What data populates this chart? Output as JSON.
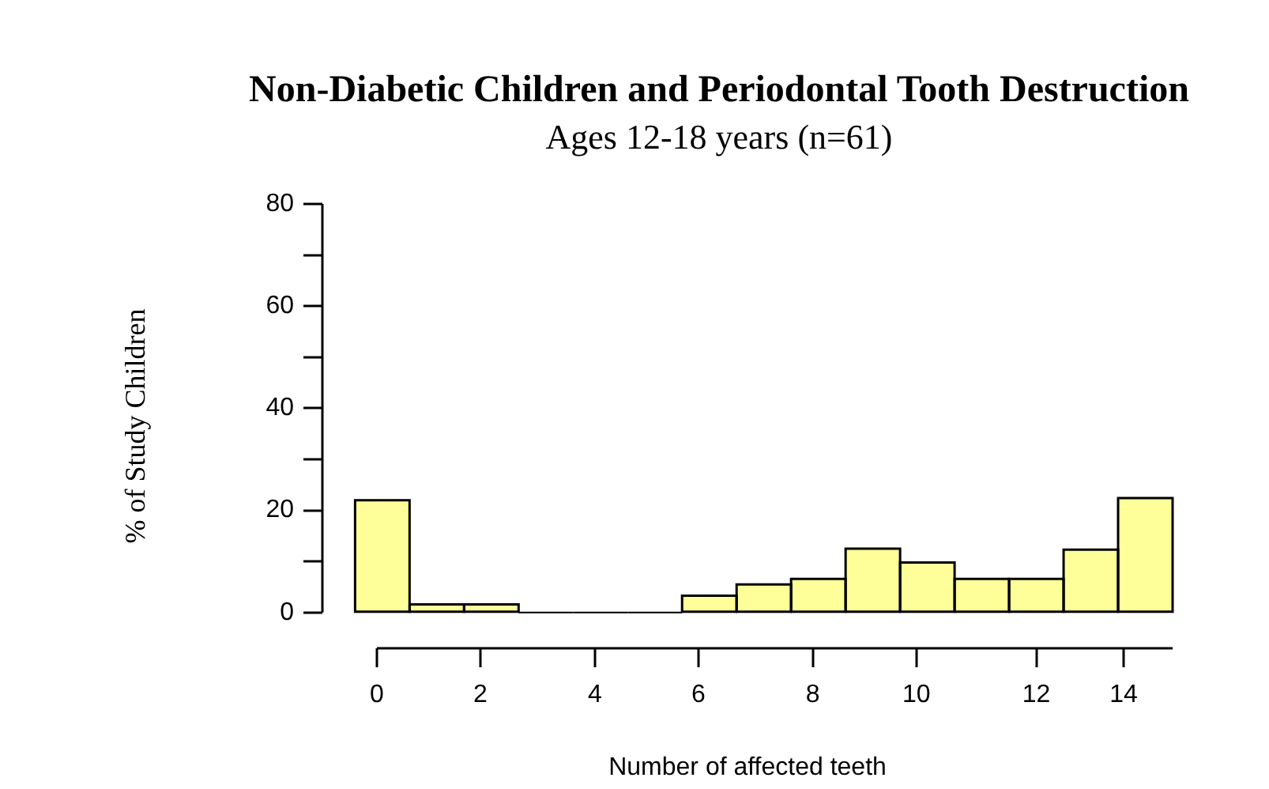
{
  "chart_data": {
    "type": "histogram",
    "title": "Non-Diabetic Children and Periodontal Tooth Destruction",
    "subtitle": "Ages 12-18 years (n=61)",
    "xlabel": "Number of affected teeth",
    "ylabel": "% of Study Children",
    "bins": [
      -0.5,
      0.5,
      1.5,
      2.5,
      3.5,
      4.5,
      5.5,
      6.5,
      7.5,
      8.5,
      9.5,
      10.5,
      11.5,
      12.5,
      13.5,
      14.5
    ],
    "values": [
      22,
      1.6,
      1.6,
      0,
      0,
      0,
      3.3,
      5.5,
      6.6,
      12.5,
      9.8,
      6.6,
      6.6,
      12.3,
      22.4
    ],
    "color": "#ffff99",
    "xlim": [
      -1.1,
      14.5
    ],
    "ylim": [
      -7,
      80
    ],
    "xticks": [
      {
        "value": -0.1,
        "label": "0"
      },
      {
        "value": 1.8,
        "label": "2"
      },
      {
        "value": 3.9,
        "label": "4"
      },
      {
        "value": 5.8,
        "label": "6"
      },
      {
        "value": 7.9,
        "label": "8"
      },
      {
        "value": 9.8,
        "label": "10"
      },
      {
        "value": 12,
        "label": "12"
      },
      {
        "value": 13.6,
        "label": "14"
      }
    ],
    "yticks": [
      0,
      {
        "value": 10,
        "label": null
      },
      20,
      {
        "value": 30,
        "label": null
      },
      40,
      {
        "value": 50,
        "label": null
      },
      60,
      {
        "value": 70,
        "label": null
      },
      80
    ],
    "grid": false,
    "legend": false
  }
}
